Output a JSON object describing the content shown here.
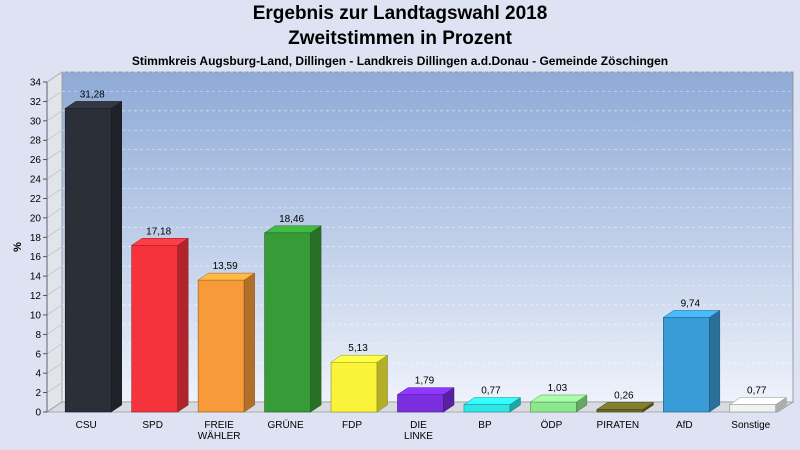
{
  "header": {
    "title": "Ergebnis zur Landtagswahl 2018",
    "subtitle": "Zweitstimmen in Prozent",
    "location": "Stimmkreis Augsburg-Land, Dillingen - Landkreis Dillingen a.d.Donau - Gemeinde Zöschingen"
  },
  "chart_data": {
    "type": "bar",
    "title": "Ergebnis zur Landtagswahl 2018",
    "subtitle": "Zweitstimmen in Prozent",
    "ylabel": "%",
    "ylim": [
      0,
      34
    ],
    "ytick_step": 2,
    "grid": true,
    "categories": [
      [
        "CSU"
      ],
      [
        "SPD"
      ],
      [
        "FREIE",
        "WÄHLER"
      ],
      [
        "GRÜNE"
      ],
      [
        "FDP"
      ],
      [
        "DIE",
        "LINKE"
      ],
      [
        "BP"
      ],
      [
        "ÖDP"
      ],
      [
        "PIRATEN"
      ],
      [
        "AfD"
      ],
      [
        "Sonstige"
      ]
    ],
    "values": [
      31.28,
      17.18,
      13.59,
      18.46,
      5.13,
      1.79,
      0.77,
      1.03,
      0.26,
      9.74,
      0.77
    ],
    "value_labels": [
      "31,28",
      "17,18",
      "13,59",
      "18,46",
      "5,13",
      "1,79",
      "0,77",
      "1,03",
      "0,26",
      "9,74",
      "0,77"
    ],
    "colors": [
      "#2b2f38",
      "#f5333d",
      "#f79a3a",
      "#379c37",
      "#f9f33a",
      "#7a2ee0",
      "#2ee6e6",
      "#8ce88c",
      "#6d6a27",
      "#3a9cd6",
      "#f2f2f2"
    ]
  }
}
